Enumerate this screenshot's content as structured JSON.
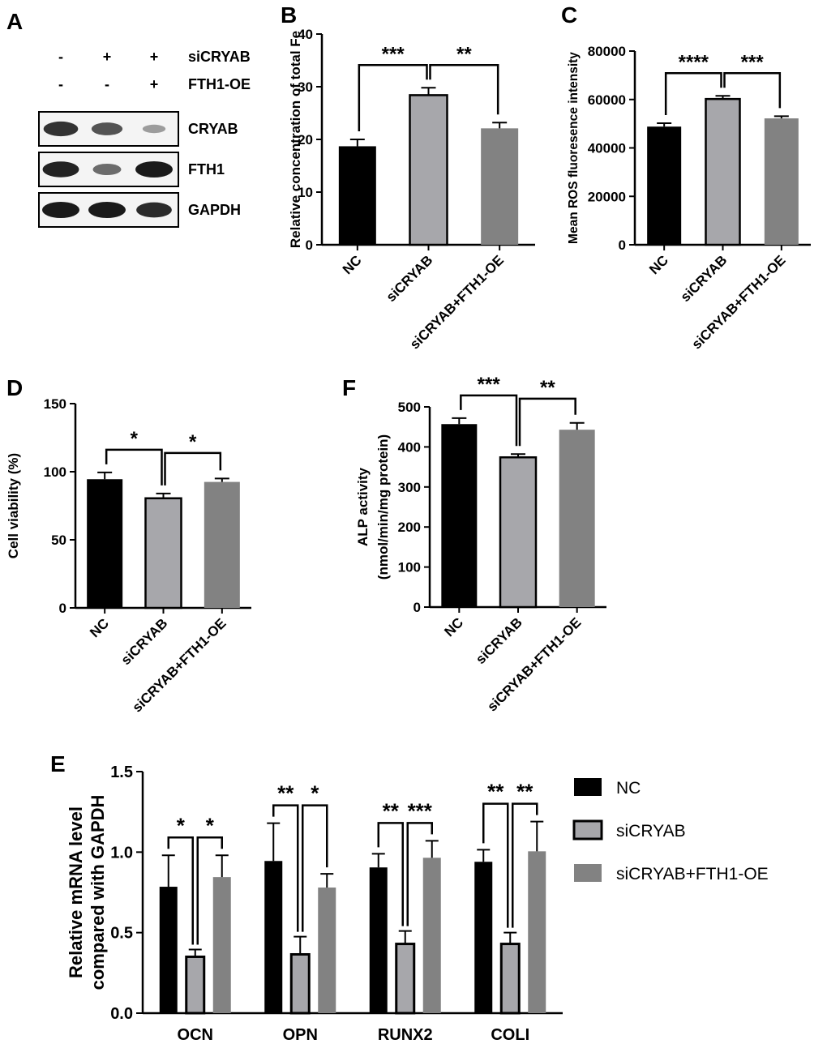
{
  "panel_labels": {
    "A": "A",
    "B": "B",
    "C": "C",
    "D": "D",
    "E": "E",
    "F": "F"
  },
  "colors": {
    "nc": "#000000",
    "sicryab": "#a7a7ab",
    "oe": "#828282",
    "blot_bg": "#f4f4f4",
    "band": "#1a1a1a"
  },
  "western_blot": {
    "conditions": [
      {
        "label": "siCRYAB",
        "marks": [
          "-",
          "+",
          "+"
        ]
      },
      {
        "label": "FTH1-OE",
        "marks": [
          "-",
          "-",
          "+"
        ]
      }
    ],
    "bands": [
      {
        "label": "CRYAB",
        "intensity": [
          0.85,
          0.65,
          0.2
        ]
      },
      {
        "label": "FTH1",
        "intensity": [
          0.95,
          0.5,
          1.0
        ]
      },
      {
        "label": "GAPDH",
        "intensity": [
          1.0,
          1.0,
          0.9
        ]
      }
    ]
  },
  "chart_data": [
    {
      "id": "B",
      "type": "bar",
      "categories": [
        "NC",
        "siCRYAB",
        "siCRYAB+FTH1-OE"
      ],
      "values": [
        18.7,
        28.4,
        22.1
      ],
      "errors": [
        1.3,
        1.4,
        1.1
      ],
      "ylabel": "Relative concentration of total Fe",
      "ylim": [
        0,
        40
      ],
      "yticks": [
        "0",
        "10",
        "20",
        "30",
        "40"
      ],
      "significance": [
        {
          "from": 0,
          "to": 1,
          "label": "***"
        },
        {
          "from": 1,
          "to": 2,
          "label": "**"
        }
      ]
    },
    {
      "id": "C",
      "type": "bar",
      "categories": [
        "NC",
        "siCRYAB",
        "siCRYAB+FTH1-OE"
      ],
      "values": [
        48800,
        60200,
        52200
      ],
      "errors": [
        1400,
        1300,
        900
      ],
      "ylabel": "Mean ROS fluoresence intensity",
      "ylim": [
        0,
        80000
      ],
      "yticks": [
        "0",
        "20000",
        "40000",
        "60000",
        "80000"
      ],
      "significance": [
        {
          "from": 0,
          "to": 1,
          "label": "****"
        },
        {
          "from": 1,
          "to": 2,
          "label": "***"
        }
      ]
    },
    {
      "id": "D",
      "type": "bar",
      "categories": [
        "NC",
        "siCRYAB",
        "siCRYAB+FTH1-OE"
      ],
      "values": [
        94.5,
        80.5,
        92.5
      ],
      "errors": [
        5,
        3.5,
        2.5
      ],
      "ylabel": "Cell viability (%)",
      "ylim": [
        0,
        150
      ],
      "yticks": [
        "0",
        "50",
        "100",
        "150"
      ],
      "significance": [
        {
          "from": 0,
          "to": 1,
          "label": "*"
        },
        {
          "from": 1,
          "to": 2,
          "label": "*"
        }
      ]
    },
    {
      "id": "F",
      "type": "bar",
      "categories": [
        "NC",
        "siCRYAB",
        "siCRYAB+FTH1-OE"
      ],
      "values": [
        457,
        374,
        443
      ],
      "errors": [
        15,
        8,
        17
      ],
      "ylabel": "ALP activity",
      "ylabel2": "(nmol/min/mg protein)",
      "ylim": [
        0,
        500
      ],
      "yticks": [
        "0",
        "100",
        "200",
        "300",
        "400",
        "500"
      ],
      "significance": [
        {
          "from": 0,
          "to": 1,
          "label": "***"
        },
        {
          "from": 1,
          "to": 2,
          "label": "**"
        }
      ]
    },
    {
      "id": "E",
      "type": "bar",
      "categories": [
        "OCN",
        "OPN",
        "RUNX2",
        "COLI"
      ],
      "series": [
        {
          "name": "NC",
          "values": [
            0.785,
            0.945,
            0.905,
            0.94
          ],
          "errors": [
            0.195,
            0.235,
            0.085,
            0.075
          ]
        },
        {
          "name": "siCRYAB",
          "values": [
            0.35,
            0.365,
            0.43,
            0.43
          ],
          "errors": [
            0.045,
            0.11,
            0.08,
            0.07
          ]
        },
        {
          "name": "siCRYAB+FTH1-OE",
          "values": [
            0.845,
            0.78,
            0.965,
            1.005
          ],
          "errors": [
            0.135,
            0.085,
            0.105,
            0.185
          ]
        }
      ],
      "ylabel": "Relative mRNA level",
      "ylabel2": "compared with GAPDH",
      "ylim": [
        0,
        1.5
      ],
      "yticks": [
        "0.0",
        "0.5",
        "1.0",
        "1.5"
      ],
      "legend": "right",
      "significance": [
        [
          {
            "from": 0,
            "to": 1,
            "label": "*"
          },
          {
            "from": 1,
            "to": 2,
            "label": "*"
          }
        ],
        [
          {
            "from": 0,
            "to": 1,
            "label": "**"
          },
          {
            "from": 1,
            "to": 2,
            "label": "*"
          }
        ],
        [
          {
            "from": 0,
            "to": 1,
            "label": "**"
          },
          {
            "from": 1,
            "to": 2,
            "label": "***"
          }
        ],
        [
          {
            "from": 0,
            "to": 1,
            "label": "**"
          },
          {
            "from": 1,
            "to": 2,
            "label": "**"
          }
        ]
      ]
    }
  ]
}
